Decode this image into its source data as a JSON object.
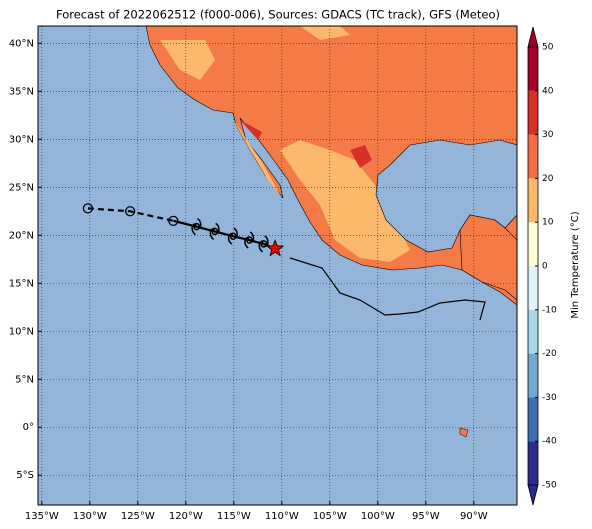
{
  "chart_data": {
    "type": "map",
    "title": "Forecast of 2022062512 (f000-006), Sources: GDACS (TC track), GFS (Meteo)",
    "xlim": [
      -135.4,
      -85.5
    ],
    "ylim": [
      -8.1,
      41.8
    ],
    "xticks": [
      {
        "value": -135,
        "label": "135°W"
      },
      {
        "value": -130,
        "label": "130°W"
      },
      {
        "value": -125,
        "label": "125°W"
      },
      {
        "value": -120,
        "label": "120°W"
      },
      {
        "value": -115,
        "label": "115°W"
      },
      {
        "value": -110,
        "label": "110°W"
      },
      {
        "value": -105,
        "label": "105°W"
      },
      {
        "value": -100,
        "label": "100°W"
      },
      {
        "value": -95,
        "label": "95°W"
      },
      {
        "value": -90,
        "label": "90°W"
      }
    ],
    "yticks": [
      {
        "value": -5,
        "label": "5°S"
      },
      {
        "value": 0,
        "label": "0°"
      },
      {
        "value": 5,
        "label": "5°N"
      },
      {
        "value": 10,
        "label": "10°N"
      },
      {
        "value": 15,
        "label": "15°N"
      },
      {
        "value": 20,
        "label": "20°N"
      },
      {
        "value": 25,
        "label": "25°N"
      },
      {
        "value": 30,
        "label": "30°N"
      },
      {
        "value": 35,
        "label": "35°N"
      },
      {
        "value": 40,
        "label": "40°N"
      }
    ],
    "grid": true,
    "track": {
      "lon": [
        -130.2,
        -125.8,
        -121.3,
        -118.9,
        -117.0,
        -115.1,
        -113.4,
        -111.9,
        -110.7
      ],
      "lat": [
        22.8,
        22.5,
        21.5,
        20.9,
        20.4,
        19.9,
        19.5,
        19.1,
        18.6
      ],
      "markers": [
        "circle",
        "circle",
        "circle",
        "storm",
        "storm",
        "storm",
        "storm",
        "storm",
        "star"
      ]
    },
    "colorbar": {
      "label": "Min Temperature (°C)",
      "ticks": [
        -50,
        -40,
        -30,
        -20,
        -10,
        0,
        10,
        20,
        30,
        40,
        50
      ],
      "colors": [
        "#2c2c8c",
        "#3f6db0",
        "#74a9cf",
        "#abd9e9",
        "#e0f3f8",
        "#ffffd4",
        "#fdb96b",
        "#f46d43",
        "#d73027",
        "#a50026"
      ]
    }
  }
}
